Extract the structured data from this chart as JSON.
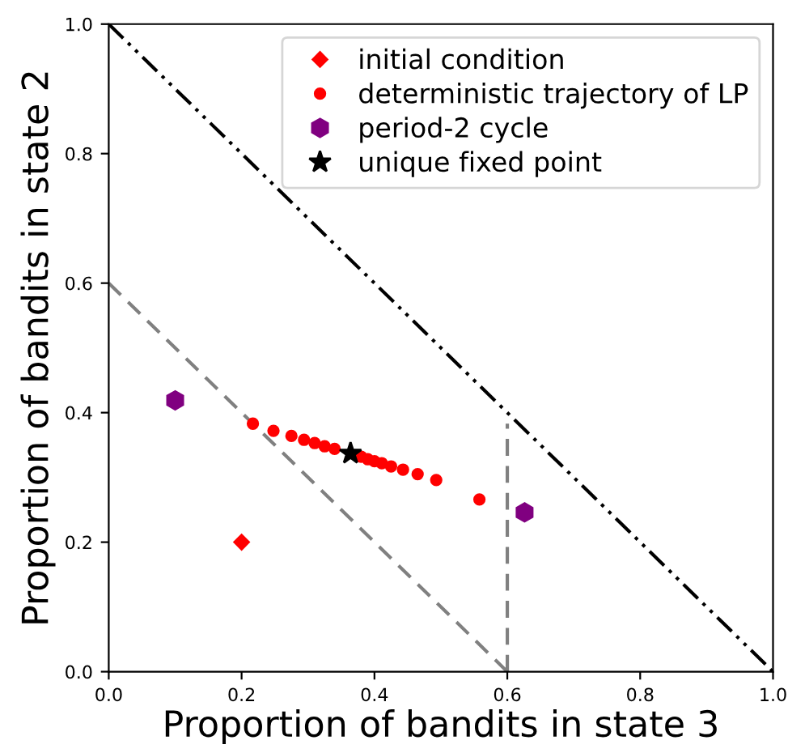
{
  "chart_data": {
    "type": "scatter",
    "xlabel": "Proportion of bandits in state 3",
    "ylabel": "Proportion of bandits in state 2",
    "xlim": [
      0,
      1
    ],
    "ylim": [
      0,
      1
    ],
    "xticks": [
      {
        "value": 0,
        "label": "0.0"
      },
      {
        "value": 0.2,
        "label": "0.2"
      },
      {
        "value": 0.4,
        "label": "0.4"
      },
      {
        "value": 0.6,
        "label": "0.6"
      },
      {
        "value": 0.8,
        "label": "0.8"
      },
      {
        "value": 1,
        "label": "1.0"
      }
    ],
    "yticks": [
      {
        "value": 0,
        "label": "0.0"
      },
      {
        "value": 0.2,
        "label": "0.2"
      },
      {
        "value": 0.4,
        "label": "0.4"
      },
      {
        "value": 0.6,
        "label": "0.6"
      },
      {
        "value": 0.8,
        "label": "0.8"
      },
      {
        "value": 1,
        "label": "1.0"
      }
    ],
    "grid": false,
    "legend": "top right",
    "series": [
      {
        "type": "line",
        "color": "#000000",
        "line_style": "dashdot",
        "marker": "none",
        "x": [
          0,
          1
        ],
        "values": [
          1,
          0
        ]
      },
      {
        "type": "line",
        "color": "#808080",
        "line_style": "dashed",
        "marker": "none",
        "x": [
          0,
          0.6
        ],
        "values": [
          0.6,
          0
        ]
      },
      {
        "type": "line",
        "color": "#808080",
        "line_style": "dashed",
        "marker": "none",
        "x": [
          0.6,
          0.6
        ],
        "values": [
          0,
          0.383
        ]
      },
      {
        "name": "initial condition",
        "color": "#ff0000",
        "marker": "diamond",
        "x": [
          0.2
        ],
        "values": [
          0.2
        ]
      },
      {
        "name": "deterministic trajectory of LP",
        "color": "#ff0000",
        "marker": "circle",
        "x": [
          0.217,
          0.248,
          0.275,
          0.294,
          0.31,
          0.325,
          0.34,
          0.38,
          0.39,
          0.4,
          0.411,
          0.425,
          0.443,
          0.465,
          0.493,
          0.558
        ],
        "values": [
          0.383,
          0.372,
          0.364,
          0.358,
          0.353,
          0.348,
          0.344,
          0.332,
          0.328,
          0.325,
          0.322,
          0.317,
          0.312,
          0.305,
          0.296,
          0.266
        ]
      },
      {
        "name": "period-2 cycle",
        "color": "#800080",
        "x": [
          0.1,
          0.626
        ],
        "values": [
          0.419,
          0.246
        ]
      },
      {
        "name": "unique fixed point",
        "color": "#000000",
        "marker": "star",
        "x": [
          0.364
        ],
        "values": [
          0.337
        ]
      }
    ]
  }
}
